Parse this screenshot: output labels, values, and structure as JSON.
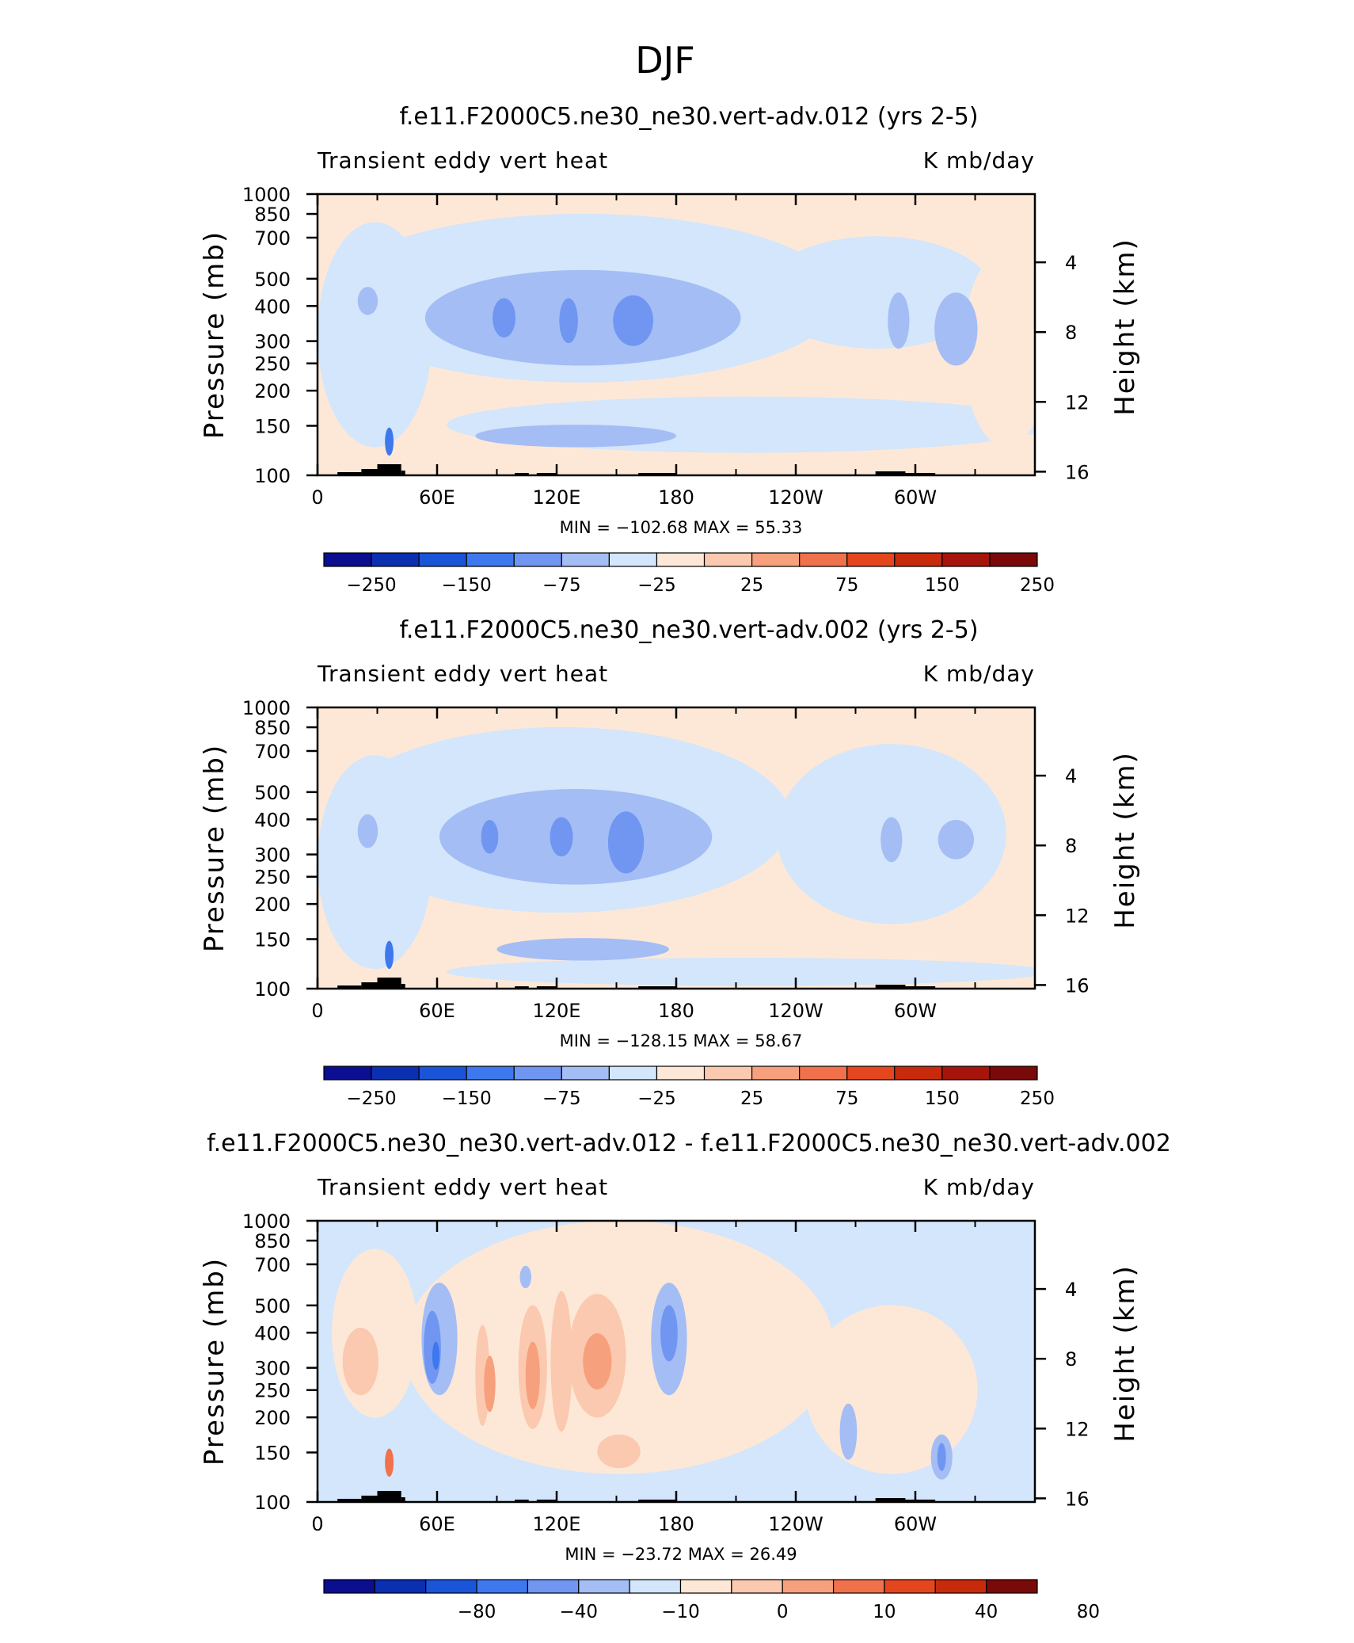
{
  "figure": {
    "title": "DJF"
  },
  "colors": {
    "blue8": "#0b0e8f",
    "blue7": "#0a2fb0",
    "blue6": "#1a55d8",
    "blue5": "#3e78ee",
    "blue4": "#7096f2",
    "blue3": "#a4bdf5",
    "blue2": "#d3e6fb",
    "tan1": "#fde8d7",
    "tan2": "#fbc9af",
    "tan3": "#f7a07d",
    "tan4": "#f1714b",
    "red5": "#e4461e",
    "red6": "#c82a0c",
    "red7": "#a6150b",
    "red8": "#7a0a0a",
    "terrain": "#000000"
  },
  "chart_data": [
    {
      "type": "heatmap",
      "title": "f.e11.F2000C5.ne30_ne30.vert-adv.012 (yrs 2-5)",
      "left_label": "Transient eddy vert heat",
      "right_label": "K mb/day",
      "ylabel": "Pressure (mb)",
      "ylabel_right": "Height (km)",
      "x_ticks": [
        "0",
        "60E",
        "120E",
        "180",
        "120W",
        "60W"
      ],
      "y_ticks": [
        "100",
        "150",
        "200",
        "250",
        "300",
        "400",
        "500",
        "700",
        "850",
        "1000"
      ],
      "y_ticks_right": [
        "16",
        "12",
        "8",
        "4"
      ],
      "ylim": [
        1000,
        100
      ],
      "stats": "MIN = −102.68   MAX =   55.33",
      "colorbar_labels": [
        "−250",
        "−150",
        "−75",
        "−25",
        "25",
        "75",
        "150",
        "250"
      ],
      "min": -102.68,
      "max": 55.33
    },
    {
      "type": "heatmap",
      "title": "f.e11.F2000C5.ne30_ne30.vert-adv.002 (yrs 2-5)",
      "left_label": "Transient eddy vert heat",
      "right_label": "K mb/day",
      "ylabel": "Pressure (mb)",
      "ylabel_right": "Height (km)",
      "x_ticks": [
        "0",
        "60E",
        "120E",
        "180",
        "120W",
        "60W"
      ],
      "y_ticks": [
        "100",
        "150",
        "200",
        "250",
        "300",
        "400",
        "500",
        "700",
        "850",
        "1000"
      ],
      "y_ticks_right": [
        "16",
        "12",
        "8",
        "4"
      ],
      "ylim": [
        1000,
        100
      ],
      "stats": "MIN = −128.15   MAX =   58.67",
      "colorbar_labels": [
        "−250",
        "−150",
        "−75",
        "−25",
        "25",
        "75",
        "150",
        "250"
      ],
      "min": -128.15,
      "max": 58.67
    },
    {
      "type": "heatmap",
      "title": "f.e11.F2000C5.ne30_ne30.vert-adv.012 - f.e11.F2000C5.ne30_ne30.vert-adv.002",
      "left_label": "Transient eddy vert heat",
      "right_label": "K mb/day",
      "ylabel": "Pressure (mb)",
      "ylabel_right": "Height (km)",
      "x_ticks": [
        "0",
        "60E",
        "120E",
        "180",
        "120W",
        "60W"
      ],
      "y_ticks": [
        "100",
        "150",
        "200",
        "250",
        "300",
        "400",
        "500",
        "700",
        "850",
        "1000"
      ],
      "y_ticks_right": [
        "16",
        "12",
        "8",
        "4"
      ],
      "ylim": [
        1000,
        100
      ],
      "stats": "MIN = −23.72   MAX =   26.49",
      "colorbar_labels": [
        "−80",
        "−40",
        "−10",
        "0",
        "10",
        "40",
        "80"
      ],
      "min": -23.72,
      "max": 26.49
    }
  ]
}
